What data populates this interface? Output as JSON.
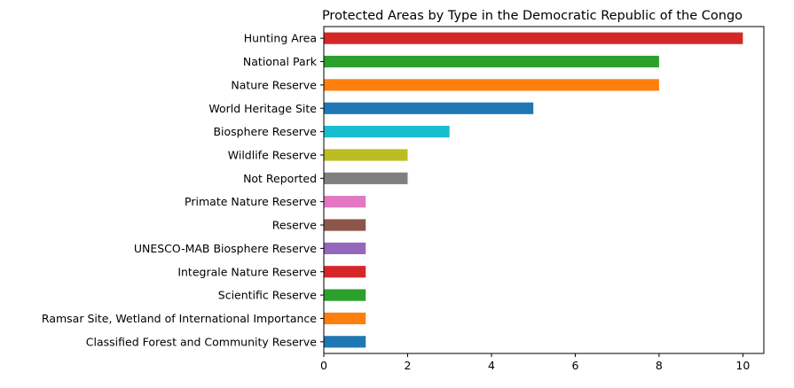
{
  "chart_data": {
    "type": "bar",
    "orientation": "horizontal",
    "title": "Protected Areas by Type in the Democratic Republic of the Congo",
    "xlabel": "",
    "ylabel": "",
    "xlim": [
      0,
      10.5
    ],
    "xticks": [
      0,
      2,
      4,
      6,
      8,
      10
    ],
    "grid": false,
    "categories": [
      "Hunting Area",
      "National Park",
      "Nature Reserve",
      "World Heritage Site",
      "Biosphere Reserve",
      "Wildlife Reserve",
      "Not Reported",
      "Primate Nature Reserve",
      "Reserve",
      "UNESCO-MAB Biosphere Reserve",
      "Integrale Nature Reserve",
      "Scientific Reserve",
      "Ramsar Site, Wetland of International Importance",
      "Classified Forest and Community Reserve"
    ],
    "values": [
      10,
      8,
      8,
      5,
      3,
      2,
      2,
      1,
      1,
      1,
      1,
      1,
      1,
      1
    ],
    "colors": [
      "#d62728",
      "#2ca02c",
      "#ff7f0e",
      "#1f77b4",
      "#17becf",
      "#bcbd22",
      "#7f7f7f",
      "#e377c2",
      "#8c564b",
      "#9467bd",
      "#d62728",
      "#2ca02c",
      "#ff7f0e",
      "#1f77b4"
    ]
  }
}
